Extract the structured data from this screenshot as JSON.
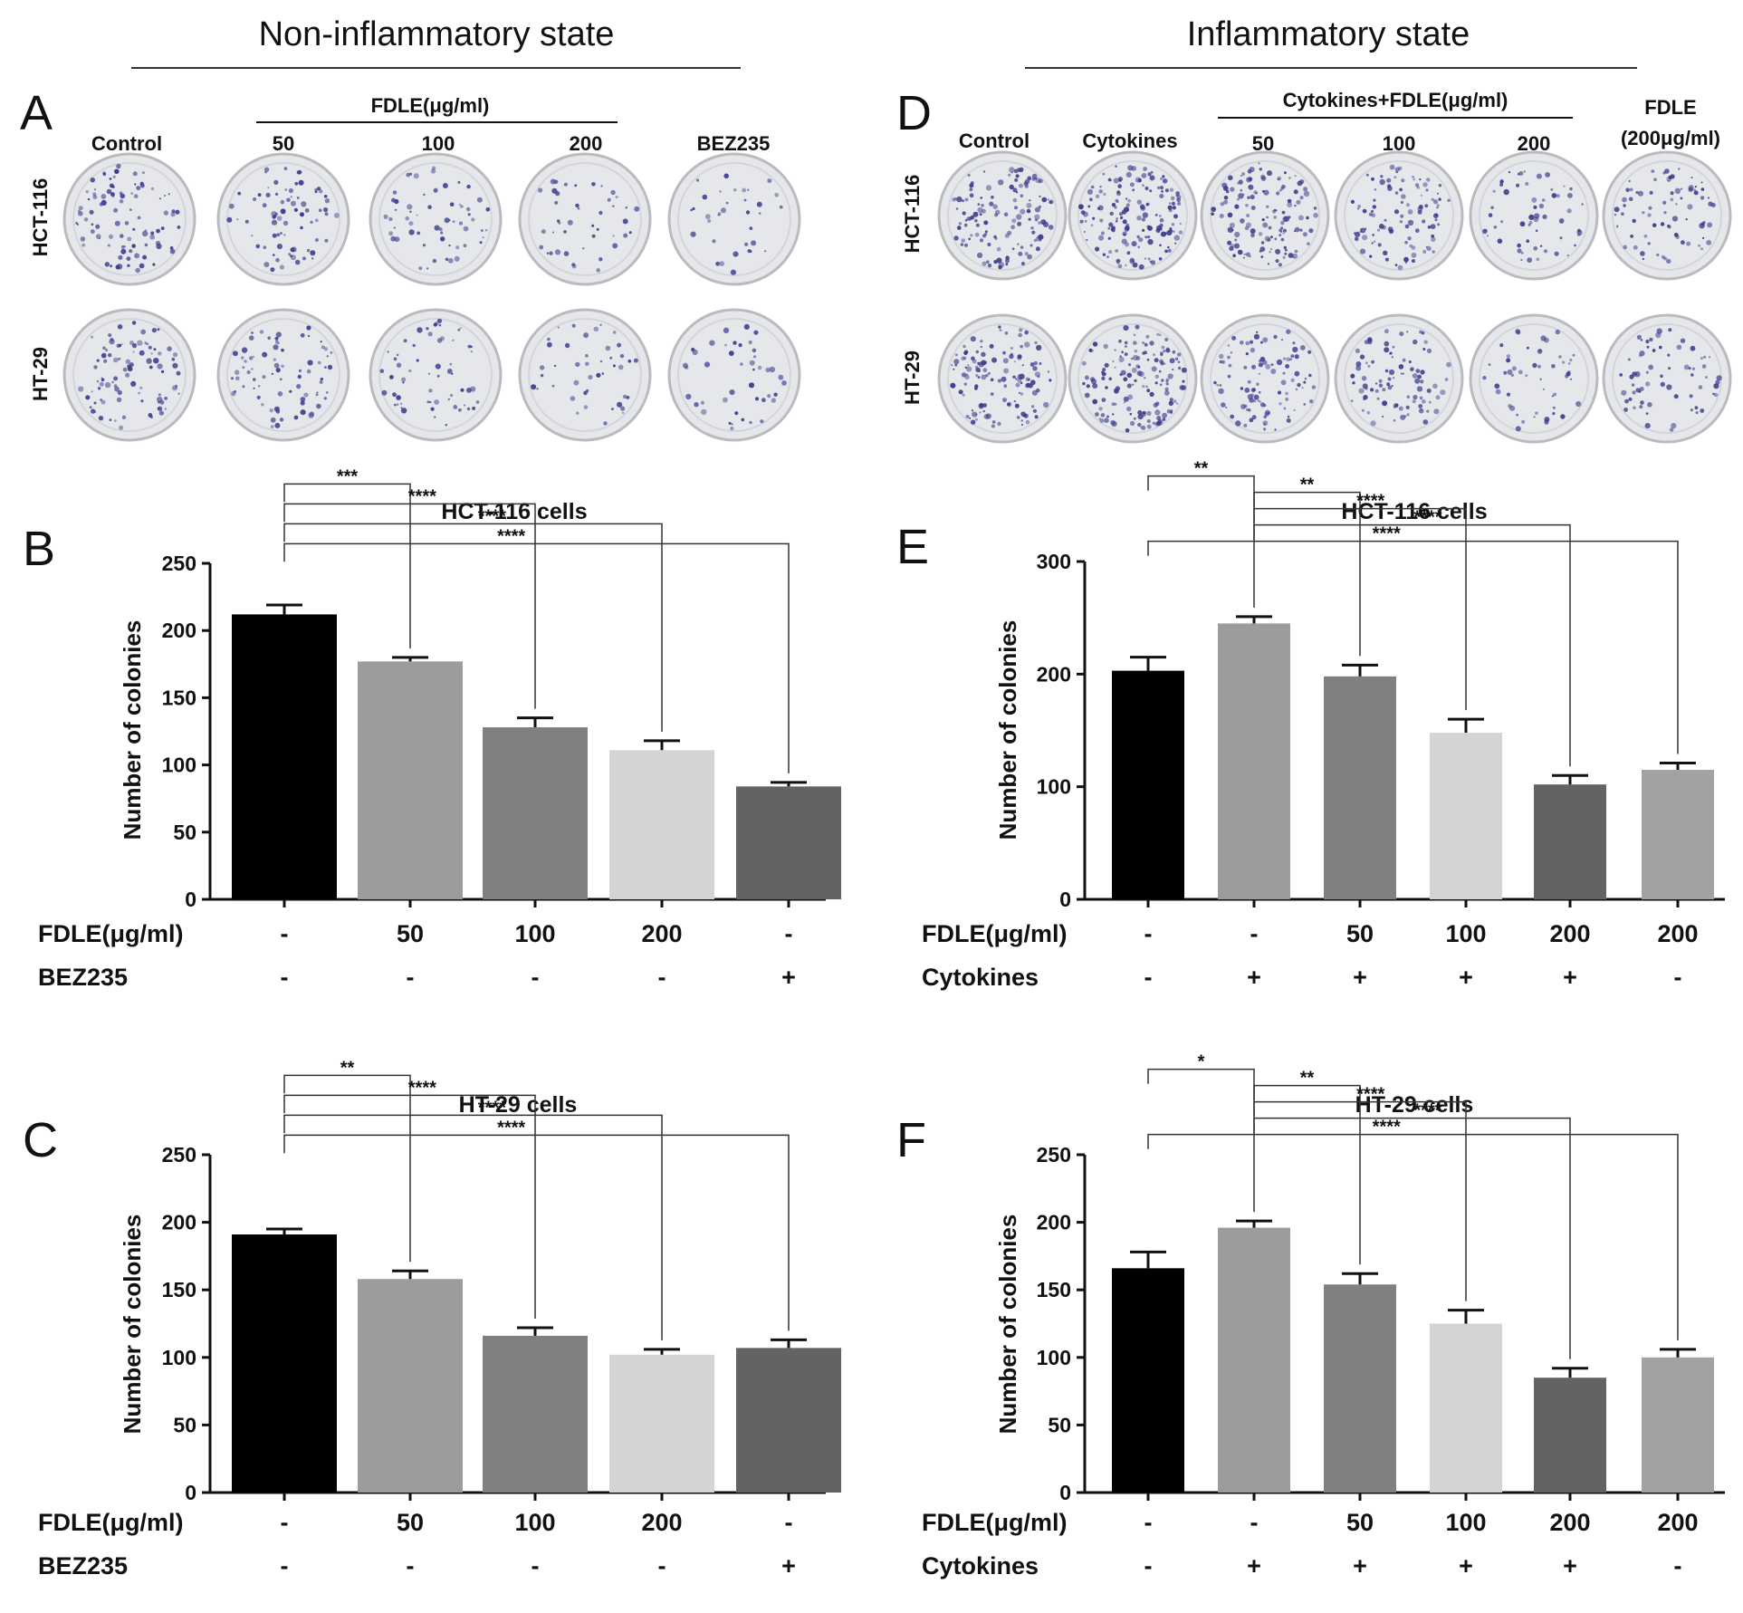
{
  "headers": {
    "left": "Non-inflammatory state",
    "right": "Inflammatory state"
  },
  "plates_left": {
    "letter": "A",
    "group_label": "FDLE(μg/ml)",
    "columns": [
      "Control",
      "50",
      "100",
      "200",
      "BEZ235"
    ],
    "rows": [
      "HCT-116",
      "HT-29"
    ],
    "colony_density": [
      [
        0.55,
        0.45,
        0.35,
        0.25,
        0.2
      ],
      [
        0.55,
        0.45,
        0.35,
        0.25,
        0.25
      ]
    ]
  },
  "plates_right": {
    "letter": "D",
    "group_label": "Cytokines+FDLE(μg/ml)",
    "columns": [
      "Control",
      "Cytokines",
      "50",
      "100",
      "200"
    ],
    "extra_column": [
      "FDLE",
      "(200μg/ml)"
    ],
    "rows": [
      "HCT-116",
      "HT-29"
    ],
    "colony_density": [
      [
        0.75,
        0.95,
        0.8,
        0.6,
        0.35,
        0.45
      ],
      [
        0.75,
        0.9,
        0.6,
        0.55,
        0.3,
        0.4
      ]
    ]
  },
  "style": {
    "bar_colors": [
      "#000000",
      "#9c9c9c",
      "#808080",
      "#d4d4d4",
      "#636363",
      "#a2a2a2"
    ],
    "plate_bg": "#e6e7ea",
    "colony_color": "#3a3d8c"
  },
  "chart_data": [
    {
      "id": "B",
      "letter": "B",
      "type": "bar",
      "title": "HCT-116 cells",
      "xlabel": "",
      "ylabel": "Number of colonies",
      "ylim": [
        0,
        250
      ],
      "yticks": [
        "0",
        "50",
        "100",
        "150",
        "200",
        "250"
      ],
      "values": [
        212,
        177,
        128,
        111,
        84
      ],
      "errors": [
        7,
        3,
        7,
        7,
        3
      ],
      "row_labels": [
        "FDLE(μg/ml)",
        "BEZ235"
      ],
      "rows": [
        [
          "-",
          "50",
          "100",
          "200",
          "-"
        ],
        [
          "-",
          "-",
          "-",
          "-",
          "+"
        ]
      ],
      "comparisons": [
        {
          "from": 0,
          "to": 1,
          "label": "***"
        },
        {
          "from": 0,
          "to": 2,
          "label": "****"
        },
        {
          "from": 0,
          "to": 3,
          "label": "****"
        },
        {
          "from": 0,
          "to": 4,
          "label": "****"
        }
      ]
    },
    {
      "id": "C",
      "letter": "C",
      "type": "bar",
      "title": "HT-29 cells",
      "xlabel": "",
      "ylabel": "Number of colonies",
      "ylim": [
        0,
        250
      ],
      "yticks": [
        "0",
        "50",
        "100",
        "150",
        "200",
        "250"
      ],
      "values": [
        191,
        158,
        116,
        102,
        107
      ],
      "errors": [
        4,
        6,
        6,
        4,
        6
      ],
      "row_labels": [
        "FDLE(μg/ml)",
        "BEZ235"
      ],
      "rows": [
        [
          "-",
          "50",
          "100",
          "200",
          "-"
        ],
        [
          "-",
          "-",
          "-",
          "-",
          "+"
        ]
      ],
      "comparisons": [
        {
          "from": 0,
          "to": 1,
          "label": "**"
        },
        {
          "from": 0,
          "to": 2,
          "label": "****"
        },
        {
          "from": 0,
          "to": 3,
          "label": "****"
        },
        {
          "from": 0,
          "to": 4,
          "label": "****"
        }
      ]
    },
    {
      "id": "E",
      "letter": "E",
      "type": "bar",
      "title": "HCT-116 cells",
      "xlabel": "",
      "ylabel": "Number of colonies",
      "ylim": [
        0,
        300
      ],
      "yticks": [
        "0",
        "100",
        "200",
        "300"
      ],
      "values": [
        203,
        245,
        198,
        148,
        102,
        115
      ],
      "errors": [
        12,
        6,
        10,
        12,
        8,
        6
      ],
      "row_labels": [
        "FDLE(μg/ml)",
        "Cytokines"
      ],
      "rows": [
        [
          "-",
          "-",
          "50",
          "100",
          "200",
          "200"
        ],
        [
          "-",
          "+",
          "+",
          "+",
          "+",
          "-"
        ]
      ],
      "comparisons": [
        {
          "from": 0,
          "to": 1,
          "label": "**"
        },
        {
          "from": 1,
          "to": 2,
          "label": "**"
        },
        {
          "from": 1,
          "to": 3,
          "label": "****"
        },
        {
          "from": 1,
          "to": 4,
          "label": "****"
        },
        {
          "from": 0,
          "to": 5,
          "label": "****"
        }
      ]
    },
    {
      "id": "F",
      "letter": "F",
      "type": "bar",
      "title": "HT-29 cells",
      "xlabel": "",
      "ylabel": "Number of colonies",
      "ylim": [
        0,
        250
      ],
      "yticks": [
        "0",
        "50",
        "100",
        "150",
        "200",
        "250"
      ],
      "values": [
        166,
        196,
        154,
        125,
        85,
        100
      ],
      "errors": [
        12,
        5,
        8,
        10,
        7,
        6
      ],
      "row_labels": [
        "FDLE(μg/ml)",
        "Cytokines"
      ],
      "rows": [
        [
          "-",
          "-",
          "50",
          "100",
          "200",
          "200"
        ],
        [
          "-",
          "+",
          "+",
          "+",
          "+",
          "-"
        ]
      ],
      "comparisons": [
        {
          "from": 0,
          "to": 1,
          "label": "*"
        },
        {
          "from": 1,
          "to": 2,
          "label": "**"
        },
        {
          "from": 1,
          "to": 3,
          "label": "****"
        },
        {
          "from": 1,
          "to": 4,
          "label": "****"
        },
        {
          "from": 0,
          "to": 5,
          "label": "****"
        }
      ]
    }
  ]
}
